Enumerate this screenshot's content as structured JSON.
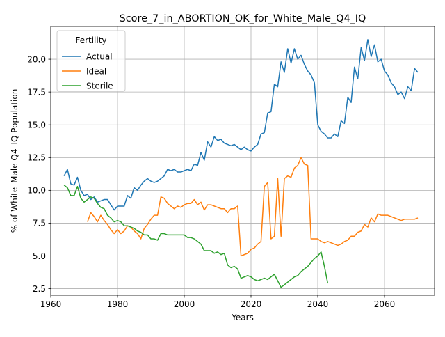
{
  "chart_data": {
    "type": "line",
    "title": "Score_7_in_ABORTION_OK_for_White_Male_Q4_IQ",
    "xlabel": "Years",
    "ylabel": "% of White_Male Q4_IQ Population",
    "xlim": [
      1960,
      2075
    ],
    "ylim": [
      2.0,
      22.5
    ],
    "xticks": [
      1960,
      1980,
      2000,
      2020,
      2040,
      2060
    ],
    "yticks": [
      2.5,
      5.0,
      7.5,
      10.0,
      12.5,
      15.0,
      17.5,
      20.0
    ],
    "grid": true,
    "legend": {
      "title": "Fertility",
      "placement": "upper left"
    },
    "series": [
      {
        "name": "Actual",
        "color": "#1f77b4",
        "x": [
          1964,
          1965,
          1966,
          1967,
          1968,
          1969,
          1970,
          1971,
          1972,
          1973,
          1974,
          1975,
          1976,
          1977,
          1978,
          1979,
          1980,
          1981,
          1982,
          1983,
          1984,
          1985,
          1986,
          1987,
          1988,
          1989,
          1990,
          1991,
          1992,
          1993,
          1994,
          1995,
          1996,
          1997,
          1998,
          1999,
          2000,
          2001,
          2002,
          2003,
          2004,
          2005,
          2006,
          2007,
          2008,
          2009,
          2010,
          2011,
          2012,
          2013,
          2014,
          2015,
          2016,
          2017,
          2018,
          2019,
          2020,
          2021,
          2022,
          2023,
          2024,
          2025,
          2026,
          2027,
          2028,
          2029,
          2030,
          2031,
          2032,
          2033,
          2034,
          2035,
          2036,
          2037,
          2038,
          2039,
          2040,
          2041,
          2042,
          2043,
          2044,
          2045,
          2046,
          2047,
          2048,
          2049,
          2050,
          2051,
          2052,
          2053,
          2054,
          2055,
          2056,
          2057,
          2058,
          2059,
          2060,
          2061,
          2062,
          2063,
          2064,
          2065,
          2066,
          2067,
          2068,
          2069,
          2070
        ],
        "values": [
          11.1,
          11.6,
          10.5,
          10.4,
          11.0,
          10.0,
          9.6,
          9.7,
          9.3,
          9.5,
          9.1,
          9.2,
          9.3,
          9.3,
          8.9,
          8.5,
          8.8,
          8.8,
          8.8,
          9.6,
          9.4,
          10.2,
          10.0,
          10.4,
          10.7,
          10.9,
          10.7,
          10.6,
          10.7,
          10.9,
          11.1,
          11.6,
          11.5,
          11.6,
          11.4,
          11.4,
          11.5,
          11.6,
          11.5,
          12.0,
          11.9,
          12.9,
          12.3,
          13.7,
          13.3,
          14.1,
          13.8,
          13.9,
          13.6,
          13.5,
          13.4,
          13.5,
          13.3,
          13.1,
          13.3,
          13.1,
          13.0,
          13.3,
          13.5,
          14.3,
          14.4,
          15.9,
          16.0,
          18.1,
          17.9,
          19.8,
          19.0,
          20.8,
          19.7,
          20.8,
          20.0,
          20.3,
          19.6,
          19.1,
          18.8,
          18.2,
          15.0,
          14.5,
          14.3,
          14.0,
          14.0,
          14.3,
          14.1,
          15.3,
          15.1,
          17.1,
          16.7,
          19.4,
          18.5,
          20.9,
          19.9,
          21.5,
          20.2,
          21.1,
          19.8,
          20.0,
          19.1,
          18.8,
          18.2,
          17.9,
          17.3,
          17.5,
          17.0,
          17.9,
          17.6,
          19.3,
          19.0
        ]
      },
      {
        "name": "Ideal",
        "color": "#ff7f0e",
        "x": [
          1971,
          1972,
          1973,
          1974,
          1975,
          1976,
          1977,
          1978,
          1979,
          1980,
          1981,
          1982,
          1983,
          1984,
          1985,
          1986,
          1987,
          1988,
          1989,
          1990,
          1991,
          1992,
          1993,
          1994,
          1995,
          1996,
          1997,
          1998,
          1999,
          2000,
          2001,
          2002,
          2003,
          2004,
          2005,
          2006,
          2007,
          2008,
          2009,
          2010,
          2011,
          2012,
          2013,
          2014,
          2015,
          2016,
          2017,
          2018,
          2019,
          2020,
          2021,
          2022,
          2023,
          2024,
          2025,
          2026,
          2027,
          2028,
          2029,
          2030,
          2031,
          2032,
          2033,
          2034,
          2035,
          2036,
          2037,
          2038,
          2039,
          2040,
          2041,
          2042,
          2043,
          2044,
          2045,
          2046,
          2047,
          2048,
          2049,
          2050,
          2051,
          2052,
          2053,
          2054,
          2055,
          2056,
          2057,
          2058,
          2059,
          2060,
          2061,
          2062,
          2063,
          2064,
          2065,
          2066,
          2067,
          2068,
          2069,
          2070
        ],
        "values": [
          7.6,
          8.3,
          8.0,
          7.6,
          8.1,
          7.7,
          7.4,
          7.0,
          6.7,
          7.0,
          6.7,
          6.9,
          7.3,
          7.2,
          6.9,
          6.7,
          6.3,
          7.1,
          7.4,
          7.8,
          8.1,
          8.1,
          9.5,
          9.4,
          9.0,
          8.8,
          8.6,
          8.8,
          8.7,
          8.9,
          9.0,
          9.0,
          9.3,
          8.9,
          9.1,
          8.5,
          8.9,
          8.9,
          8.8,
          8.7,
          8.6,
          8.6,
          8.3,
          8.6,
          8.6,
          8.8,
          5.0,
          5.1,
          5.2,
          5.5,
          5.6,
          5.9,
          6.1,
          10.3,
          10.6,
          6.3,
          6.5,
          10.9,
          6.5,
          10.9,
          11.1,
          11.0,
          11.7,
          11.9,
          12.5,
          12.0,
          11.9,
          6.3,
          6.3,
          6.3,
          6.1,
          6.0,
          6.1,
          6.0,
          5.9,
          5.8,
          5.9,
          6.1,
          6.2,
          6.5,
          6.5,
          6.8,
          6.9,
          7.4,
          7.2,
          7.9,
          7.6,
          8.2,
          8.1,
          8.1,
          8.1,
          8.0,
          7.9,
          7.8,
          7.7,
          7.8,
          7.8,
          7.8,
          7.8,
          7.9
        ]
      },
      {
        "name": "Sterile",
        "color": "#2ca02c",
        "x": [
          1964,
          1965,
          1966,
          1967,
          1968,
          1969,
          1970,
          1971,
          1972,
          1973,
          1974,
          1975,
          1976,
          1977,
          1978,
          1979,
          1980,
          1981,
          1982,
          1983,
          1984,
          1985,
          1986,
          1987,
          1988,
          1989,
          1990,
          1991,
          1992,
          1993,
          1994,
          1995,
          1996,
          1997,
          1998,
          1999,
          2000,
          2001,
          2002,
          2003,
          2004,
          2005,
          2006,
          2007,
          2008,
          2009,
          2010,
          2011,
          2012,
          2013,
          2014,
          2015,
          2016,
          2017,
          2018,
          2019,
          2020,
          2021,
          2022,
          2023,
          2024,
          2025,
          2026,
          2027,
          2028,
          2029,
          2030,
          2031,
          2032,
          2033,
          2034,
          2035,
          2036,
          2037,
          2038,
          2039,
          2040,
          2041,
          2042,
          2043
        ],
        "values": [
          10.4,
          10.2,
          9.6,
          9.6,
          10.3,
          9.4,
          9.1,
          9.3,
          9.5,
          9.4,
          9.0,
          8.7,
          8.6,
          8.1,
          7.9,
          7.6,
          7.7,
          7.6,
          7.3,
          7.3,
          7.2,
          7.1,
          6.9,
          6.8,
          6.6,
          6.6,
          6.3,
          6.3,
          6.2,
          6.7,
          6.7,
          6.6,
          6.6,
          6.6,
          6.6,
          6.6,
          6.6,
          6.4,
          6.4,
          6.3,
          6.1,
          5.9,
          5.4,
          5.4,
          5.4,
          5.2,
          5.3,
          5.1,
          5.2,
          4.3,
          4.1,
          4.2,
          4.0,
          3.3,
          3.4,
          3.5,
          3.4,
          3.2,
          3.1,
          3.2,
          3.3,
          3.2,
          3.4,
          3.6,
          3.1,
          2.6,
          2.8,
          3.0,
          3.2,
          3.4,
          3.5,
          3.8,
          4.0,
          4.2,
          4.5,
          4.8,
          5.0,
          5.3,
          4.2,
          2.9
        ]
      }
    ]
  }
}
